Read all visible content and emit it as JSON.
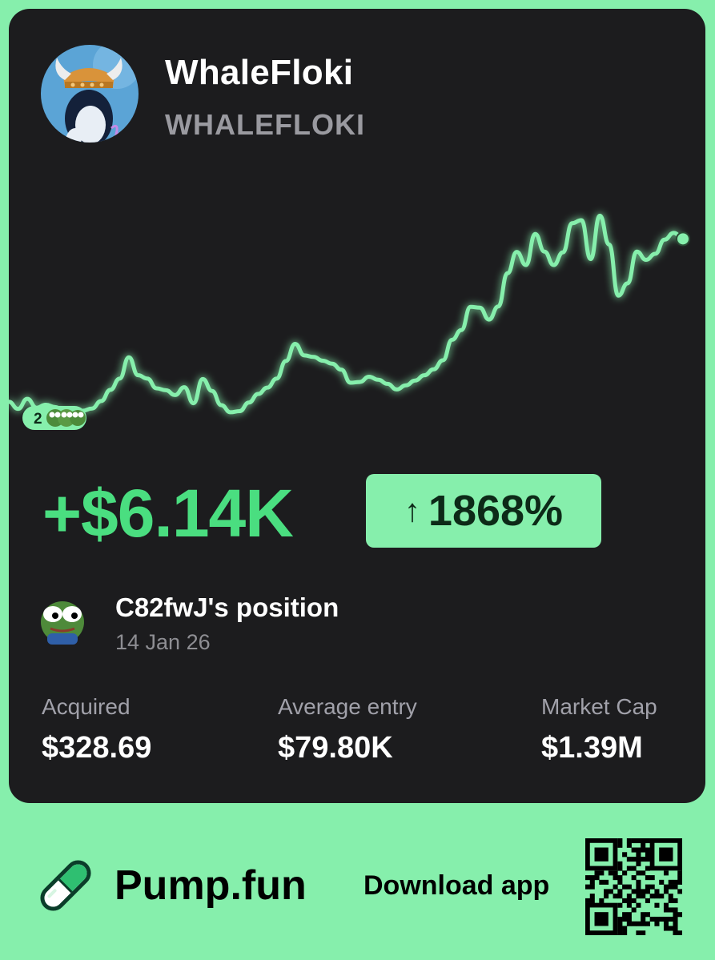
{
  "token": {
    "name": "WhaleFloki",
    "ticker": "WHALEFLOKI",
    "avatar_icon": "viking-whale-avatar-icon"
  },
  "chart": {
    "line_color": "#86EFAC",
    "marker": {
      "count": "2",
      "icon": "pepe-faces-icon"
    }
  },
  "chart_data": {
    "type": "line",
    "series": [
      {
        "values": [
          8.4,
          6.5,
          9.2,
          6.8,
          7.6,
          7.0,
          5.9,
          6.3,
          6.0,
          6.6,
          8.6,
          11.6,
          14.6,
          20.3,
          15.5,
          14.6,
          12.0,
          11.5,
          10.2,
          12.3,
          8.0,
          14.5,
          11.3,
          7.5,
          5.6,
          5.9,
          8.2,
          10.5,
          12.2,
          14.6,
          19.3,
          23.9,
          20.8,
          20.4,
          19.4,
          18.6,
          17.0,
          13.5,
          13.7,
          15.1,
          14.3,
          13.2,
          11.7,
          12.8,
          14.1,
          15.5,
          17.1,
          19.5,
          25.0,
          27.6,
          33.8,
          33.6,
          30.4,
          33.9,
          42.8,
          48.5,
          45.0,
          53.3,
          48.6,
          45.0,
          48.4,
          56.2,
          57.0,
          46.6,
          58.2,
          50.5,
          36.8,
          40.1,
          48.6,
          46.4,
          48.0,
          51.8,
          53.6,
          52.0
        ],
        "stroke": "#86EFAC"
      }
    ]
  },
  "summary": {
    "profit": "+$6.14K",
    "percent": "1868%",
    "percent_arrow": "↑",
    "profit_color": "#4ADE80",
    "badge_color": "#86EFAC"
  },
  "position": {
    "title": "C82fwJ's position",
    "date": "14 Jan 26",
    "avatar_icon": "pepe-frog-icon"
  },
  "stats": [
    {
      "label": "Acquired",
      "value": "$328.69"
    },
    {
      "label": "Average entry",
      "value": "$79.80K"
    },
    {
      "label": "Market Cap",
      "value": "$1.39M"
    }
  ],
  "footer": {
    "brand": "Pump.fun",
    "download": "Download app",
    "logo_icon": "pill-logo-icon",
    "qr_icon": "qr-code-icon",
    "background": "#86EFAC"
  }
}
